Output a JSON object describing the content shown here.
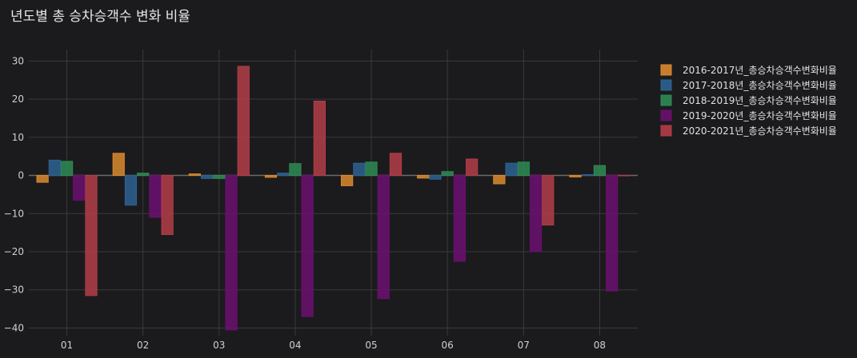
{
  "title": "년도별 총 승차승객수 변화 비율",
  "chart_data": {
    "type": "bar",
    "title": "년도별 총 승차승객수 변화 비율",
    "xlabel": "",
    "ylabel": "",
    "categories": [
      "01",
      "02",
      "03",
      "04",
      "05",
      "06",
      "07",
      "08"
    ],
    "ylim": [
      -42,
      33
    ],
    "yticks": [
      -40,
      -30,
      -20,
      -10,
      0,
      10,
      20,
      30
    ],
    "grid": true,
    "legend_position": "top-right",
    "series": [
      {
        "name": "2016-2017년_총승차승객수변화비율",
        "color": "#d9892e",
        "values": [
          -1.8,
          5.8,
          0.4,
          -0.5,
          -2.7,
          -0.7,
          -2.2,
          -0.4
        ]
      },
      {
        "name": "2017-2018년_총승차승객수변화비율",
        "color": "#2d6292",
        "values": [
          4.0,
          -7.8,
          -0.8,
          0.6,
          3.2,
          -1.0,
          3.2,
          0.2
        ]
      },
      {
        "name": "2018-2019년_총승차승객수변화비율",
        "color": "#2f8a55",
        "values": [
          3.7,
          0.6,
          -0.8,
          3.1,
          3.5,
          1.0,
          3.5,
          2.6
        ]
      },
      {
        "name": "2019-2020년_총승차승객수변화비율",
        "color": "#6b0f70",
        "values": [
          -6.5,
          -11.0,
          -40.5,
          -37.0,
          -32.3,
          -22.5,
          -20.0,
          -30.3
        ]
      },
      {
        "name": "2020-2021년_총승차승객수변화비율",
        "color": "#b23d48",
        "values": [
          -31.5,
          -15.5,
          28.6,
          19.5,
          5.8,
          4.3,
          -13.0,
          0.0
        ]
      }
    ]
  }
}
